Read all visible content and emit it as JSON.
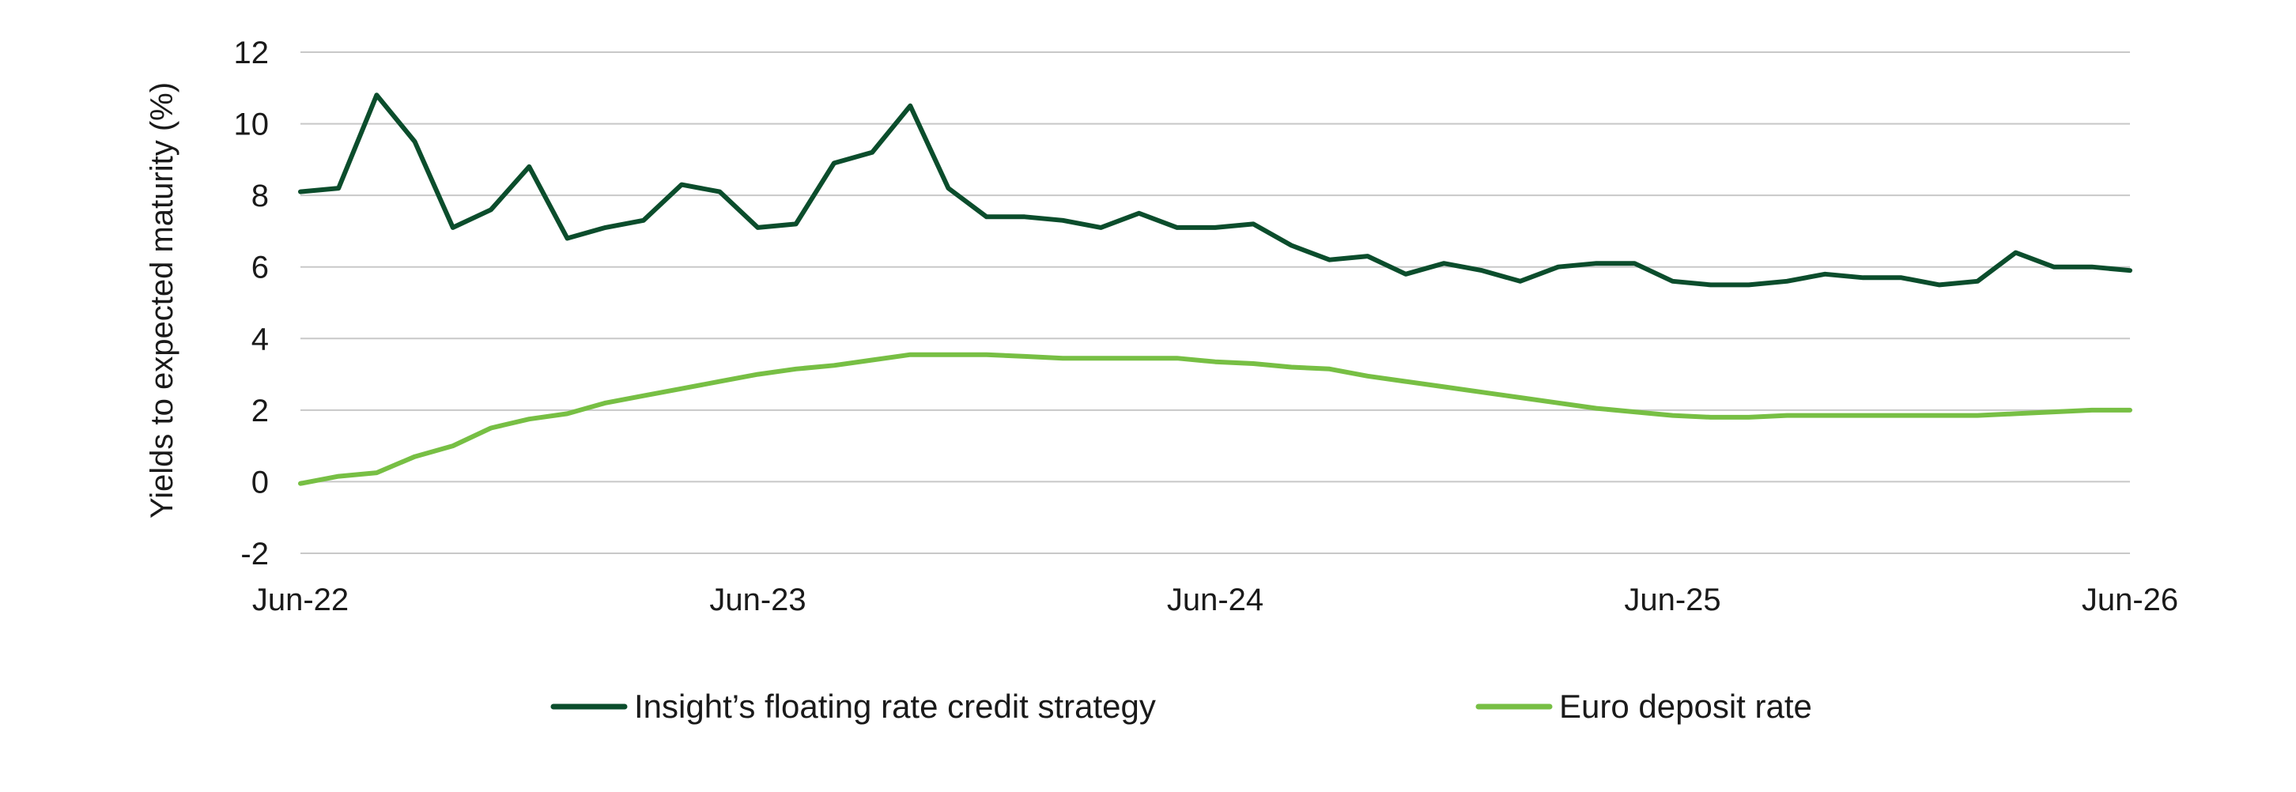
{
  "chart_data": {
    "type": "line",
    "title": "",
    "xlabel": "",
    "ylabel": "Yields to expected maturity (%)",
    "x_tick_labels": [
      "Jun-22",
      "Jun-23",
      "Jun-24",
      "Jun-25",
      "Jun-26"
    ],
    "y_ticks": [
      "12",
      "10",
      "8",
      "6",
      "4",
      "2",
      "0",
      "-2"
    ],
    "ylim": [
      -2,
      12
    ],
    "grid": "horizontal",
    "legend_position": "bottom",
    "x": [
      "Jun-22",
      "Jul-22",
      "Aug-22",
      "Sep-22",
      "Oct-22",
      "Nov-22",
      "Dec-22",
      "Jan-23",
      "Feb-23",
      "Mar-23",
      "Apr-23",
      "May-23",
      "Jun-23",
      "Jul-23",
      "Aug-23",
      "Sep-23",
      "Oct-23",
      "Nov-23",
      "Dec-23",
      "Jan-24",
      "Feb-24",
      "Mar-24",
      "Apr-24",
      "May-24",
      "Jun-24",
      "Jul-24",
      "Aug-24",
      "Sep-24",
      "Oct-24",
      "Nov-24",
      "Dec-24",
      "Jan-25",
      "Feb-25",
      "Mar-25",
      "Apr-25",
      "May-25",
      "Jun-25",
      "Jul-25",
      "Aug-25",
      "Sep-25",
      "Oct-25",
      "Nov-25",
      "Dec-25",
      "Jan-26",
      "Feb-26",
      "Mar-26",
      "Apr-26",
      "May-26",
      "Jun-26"
    ],
    "series": [
      {
        "name": "Insight’s floating rate credit strategy",
        "color": "#0b4d2c",
        "values": [
          8.1,
          8.2,
          10.8,
          9.5,
          7.1,
          7.6,
          8.8,
          6.8,
          7.1,
          7.3,
          8.3,
          8.1,
          7.1,
          7.2,
          8.9,
          9.2,
          10.5,
          8.2,
          7.4,
          7.4,
          7.3,
          7.1,
          7.5,
          7.1,
          7.1,
          7.2,
          6.6,
          6.2,
          6.3,
          5.8,
          6.1,
          5.9,
          5.6,
          6.0,
          6.1,
          6.1,
          5.6,
          5.5,
          5.5,
          5.6,
          5.8,
          5.7,
          5.7,
          5.5,
          5.6,
          6.4,
          6.0,
          6.0,
          5.9
        ]
      },
      {
        "name": "Euro deposit rate",
        "color": "#77bf44",
        "values": [
          -0.05,
          0.15,
          0.25,
          0.7,
          1.0,
          1.5,
          1.75,
          1.9,
          2.2,
          2.4,
          2.6,
          2.8,
          3.0,
          3.15,
          3.25,
          3.4,
          3.55,
          3.55,
          3.55,
          3.5,
          3.45,
          3.45,
          3.45,
          3.45,
          3.35,
          3.3,
          3.2,
          3.15,
          2.95,
          2.8,
          2.65,
          2.5,
          2.35,
          2.2,
          2.05,
          1.95,
          1.85,
          1.8,
          1.8,
          1.85,
          1.85,
          1.85,
          1.85,
          1.85,
          1.85,
          1.9,
          1.95,
          2.0,
          2.0
        ]
      }
    ]
  }
}
